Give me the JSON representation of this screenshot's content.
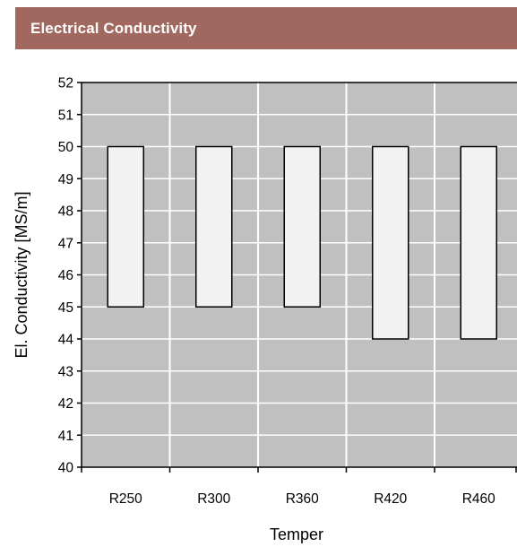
{
  "header": {
    "title": "Electrical Conductivity"
  },
  "colors": {
    "header_bg": "#a0685e",
    "plot_bg": "#c0c0c0",
    "grid": "#ffffff",
    "bar_fill": "#f2f2f2",
    "bar_stroke": "#000000"
  },
  "chart_data": {
    "type": "bar",
    "subtype": "floating-range",
    "categories": [
      "R250",
      "R300",
      "R360",
      "R420",
      "R460"
    ],
    "series": [
      {
        "low": [
          45,
          45,
          45,
          44,
          44
        ],
        "high": [
          50,
          50,
          50,
          50,
          50
        ]
      }
    ],
    "xlabel": "Temper",
    "ylabel": "El. Conductivity [MS/m]",
    "ylim": [
      40,
      52
    ],
    "yticks": [
      40,
      41,
      42,
      43,
      44,
      45,
      46,
      47,
      48,
      49,
      50,
      51,
      52
    ],
    "grid": {
      "horizontal": true,
      "vertical": true
    },
    "legend": "none"
  }
}
